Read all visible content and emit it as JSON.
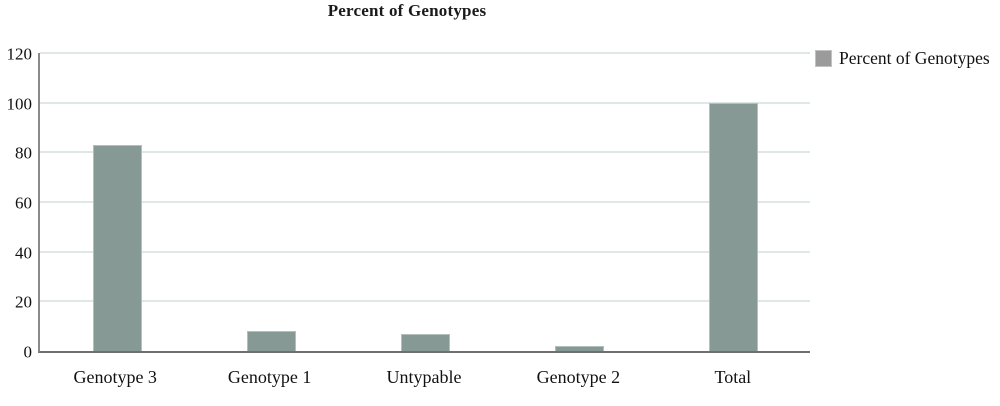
{
  "chart_data": {
    "type": "bar",
    "title": "Percent of Genotypes",
    "categories": [
      "Genotype 3",
      "Genotype 1",
      "Untypable",
      "Genotype 2",
      "Total"
    ],
    "values": [
      83,
      8,
      7,
      2,
      100
    ],
    "series_name": "Percent of Genotypes",
    "xlabel": "",
    "ylabel": "",
    "ylim": [
      0,
      120
    ],
    "yticks": [
      0,
      20,
      40,
      60,
      80,
      100,
      120
    ],
    "grid": "horizontal",
    "legend_position": "top-right",
    "colors": {
      "bar_fill": "#869995",
      "bar_edge": "#b2bfbc",
      "gridline": "#e0e8e6",
      "axis": "#6f6f6f",
      "legend_swatch": "#9b9b9b",
      "text": "#1a1a1a"
    }
  }
}
